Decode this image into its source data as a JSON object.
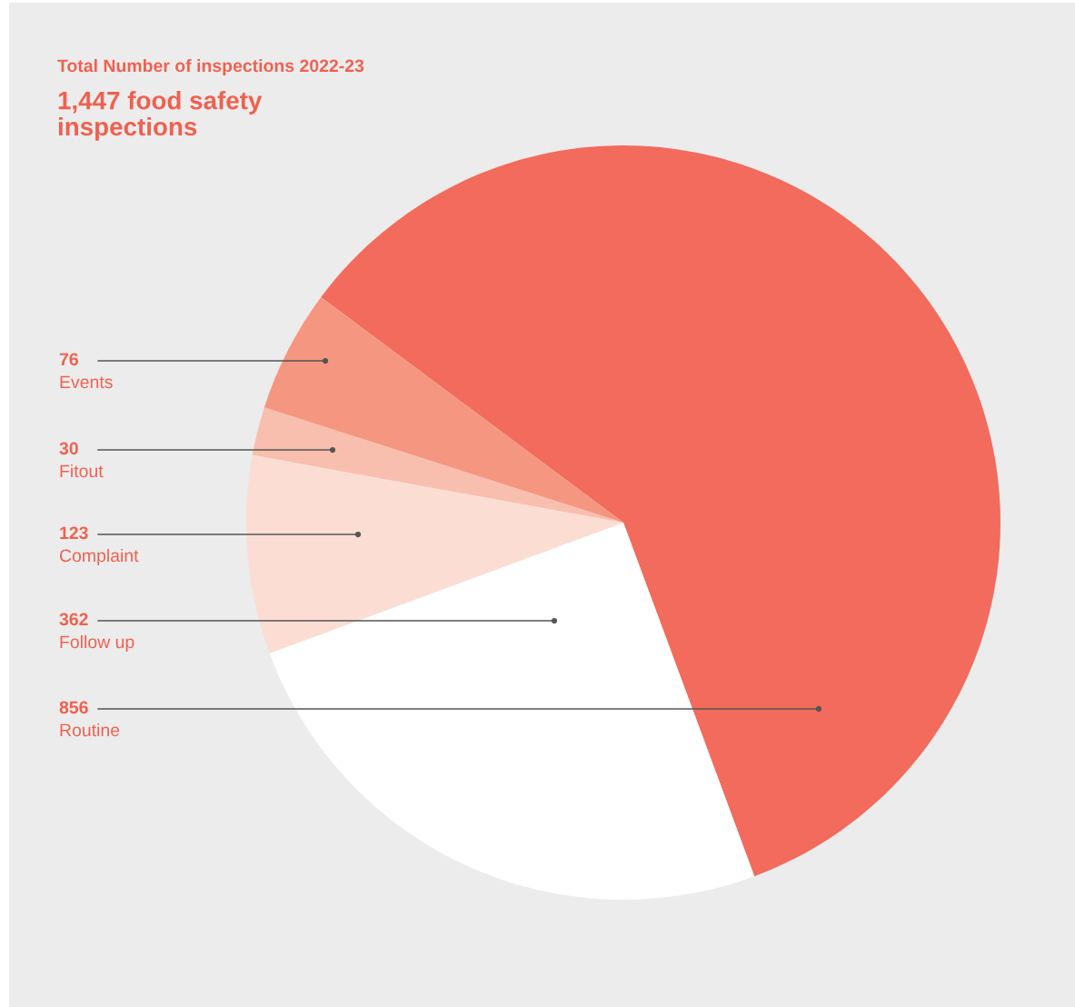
{
  "chart_data": {
    "type": "pie",
    "title": "Total Number of inspections 2022-23",
    "subtitle": "1,447 food safety\ninspections",
    "categories": [
      "Routine",
      "Follow up",
      "Complaint",
      "Fitout",
      "Events"
    ],
    "values": [
      856,
      362,
      123,
      30,
      76
    ],
    "colors": [
      "#f26b5c",
      "#ffffff",
      "#fbddd3",
      "#f9bfae",
      "#f59680"
    ],
    "data_labels": true
  }
}
